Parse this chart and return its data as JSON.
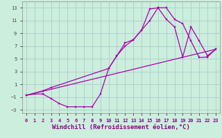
{
  "xlabel": "Windchill (Refroidissement éolien,°C)",
  "background_color": "#cceedd",
  "grid_color": "#aacccc",
  "line_color": "#aa00aa",
  "xlim": [
    -0.5,
    23.5
  ],
  "ylim": [
    -3.5,
    14.0
  ],
  "yticks": [
    -3,
    -1,
    1,
    3,
    5,
    7,
    9,
    11,
    13
  ],
  "xticks": [
    0,
    1,
    2,
    3,
    4,
    5,
    6,
    7,
    8,
    9,
    10,
    11,
    12,
    13,
    14,
    15,
    16,
    17,
    18,
    19,
    20,
    21,
    22,
    23
  ],
  "line1_x": [
    0,
    1,
    2,
    3,
    4,
    5,
    6,
    7,
    8,
    9,
    10,
    11,
    12,
    13,
    14,
    15,
    16,
    17,
    18,
    19,
    20,
    21,
    22,
    23
  ],
  "line1_y": [
    -0.7,
    -0.5,
    -0.5,
    -1.2,
    -2.0,
    -2.5,
    -2.5,
    -2.5,
    -2.5,
    -0.5,
    3.5,
    5.5,
    7.5,
    8.0,
    9.5,
    12.8,
    13.0,
    13.0,
    11.2,
    10.5,
    7.8,
    5.2,
    5.3,
    6.5
  ],
  "line2_x": [
    0,
    2,
    3,
    10,
    11,
    12,
    13,
    14,
    15,
    16,
    17,
    18,
    19,
    20,
    21,
    22,
    23
  ],
  "line2_y": [
    -0.7,
    0.0,
    0.5,
    3.5,
    5.5,
    7.0,
    8.0,
    9.5,
    11.0,
    13.0,
    11.2,
    10.0,
    5.3,
    10.0,
    7.8,
    5.5,
    6.5
  ],
  "line3_x": [
    0,
    23
  ],
  "line3_y": [
    -0.7,
    6.5
  ],
  "marker_size": 2,
  "linewidth": 0.9,
  "tick_fontsize": 5,
  "xlabel_fontsize": 6.5
}
